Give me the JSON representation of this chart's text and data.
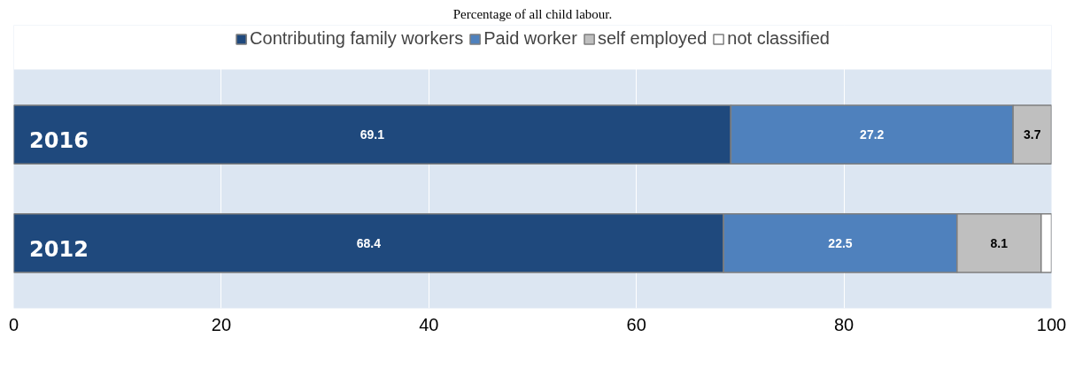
{
  "chart_data": {
    "type": "bar",
    "orientation": "horizontal",
    "stacked": true,
    "title": "Percentage of all child labour.",
    "categories": [
      "2016",
      "2012"
    ],
    "series": [
      {
        "name": "Contributing family workers",
        "color": "#1f497d",
        "values": [
          69.1,
          68.4
        ],
        "value_labels": [
          "69.1",
          "68.4"
        ]
      },
      {
        "name": "Paid worker",
        "color": "#4f81bd",
        "values": [
          27.2,
          22.5
        ],
        "value_labels": [
          "27.2",
          "22.5"
        ]
      },
      {
        "name": "self employed",
        "color": "#bfbfbf",
        "values": [
          3.7,
          8.1
        ],
        "value_labels": [
          "3.7",
          "8.1"
        ]
      },
      {
        "name": "not classified",
        "color": "#ffffff",
        "values": [
          null,
          1.0
        ],
        "value_labels": [
          null,
          null
        ]
      }
    ],
    "xlim": [
      0,
      100
    ],
    "xticks": [
      0,
      20,
      40,
      60,
      80,
      100
    ],
    "grid": "x",
    "legend": "top"
  }
}
